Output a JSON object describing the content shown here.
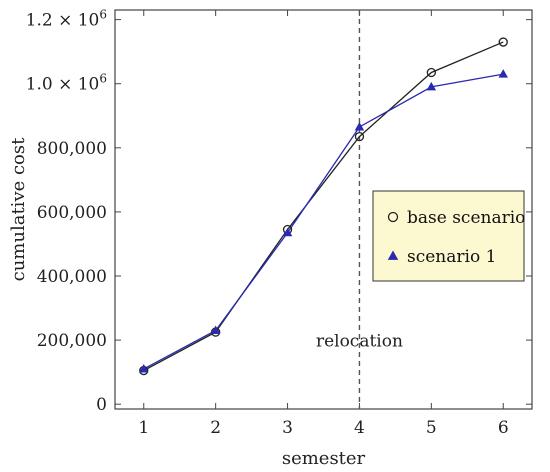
{
  "chart_data": {
    "type": "line",
    "xlabel": "semester",
    "ylabel": "cumulative  cost",
    "x": [
      1,
      2,
      3,
      4,
      5,
      6
    ],
    "xlim": [
      0.6,
      6.4
    ],
    "ylim": [
      -15000,
      1230000
    ],
    "x_ticks": [
      1,
      2,
      3,
      4,
      5,
      6
    ],
    "y_ticks": [
      {
        "value": 0,
        "label": "0"
      },
      {
        "value": 200000,
        "label": "200,000"
      },
      {
        "value": 400000,
        "label": "400,000"
      },
      {
        "value": 600000,
        "label": "600,000"
      },
      {
        "value": 800000,
        "label": "800,000"
      },
      {
        "value": 1000000,
        "label": "1.0 × 10",
        "exp": "6"
      },
      {
        "value": 1200000,
        "label": "1.2 × 10",
        "exp": "6"
      }
    ],
    "series": [
      {
        "name": "base scenario",
        "marker": "open-circle",
        "color": "#222222",
        "values": [
          105000,
          225000,
          545000,
          835000,
          1035000,
          1130000
        ]
      },
      {
        "name": "scenario 1",
        "marker": "filled-triangle",
        "color": "#2a2ab0",
        "values": [
          110000,
          230000,
          535000,
          865000,
          990000,
          1030000
        ]
      }
    ],
    "vline": {
      "x": 4,
      "label": "relocation",
      "style": "dashed"
    },
    "legend": {
      "position": "right-middle",
      "background": "#fcf8cf"
    },
    "grid": false
  }
}
